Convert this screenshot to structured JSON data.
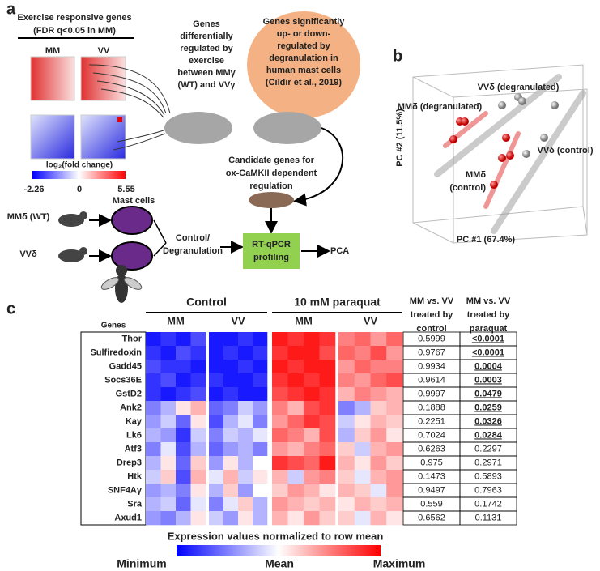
{
  "panel_a": {
    "label": "a",
    "exercise_title": [
      "Exercise responsive genes",
      "(FDR q<0.05 in MM)"
    ],
    "columns": [
      "MM",
      "VV"
    ],
    "colorbar": {
      "label": "log₂(fold change)",
      "min": -2.26,
      "mid": 0,
      "max": 5.55
    },
    "exercise_genes": [
      "Genes",
      "differentially",
      "regulated by",
      "exercise",
      "between MMγ",
      "(WT) and VVγ"
    ],
    "degranulation_genes": [
      "Genes significantly",
      "up- or down-",
      "regulated by",
      "degranulation in",
      "human mast cells",
      "(Cildir et al., 2019)"
    ],
    "candidate_genes": [
      "Candidate genes for",
      "ox-CaMKII dependent",
      "regulation"
    ],
    "mast_cells": "Mast cells",
    "mouse_wt": "MMδ (WT)",
    "mouse_vv": "VVδ",
    "treatment": [
      "Control/",
      "Degranulation"
    ],
    "profiling": [
      "RT-qPCR",
      "profiling"
    ],
    "pca": "PCA"
  },
  "panel_b": {
    "label": "b",
    "labels": [
      "VVδ (degranulated)",
      "MMδ (degranulated)",
      "VVδ (control)",
      "MMδ",
      "(control)"
    ],
    "y_axis": "PC #2 (11.5%)",
    "x_axis": "PC #1 (67.4%)"
  },
  "panel_c": {
    "label": "c",
    "group_headers": [
      "Control",
      "10 mM paraquat"
    ],
    "column_headers": [
      "MM",
      "VV",
      "MM",
      "VV"
    ],
    "genes_header": "Genes",
    "p_headers": [
      [
        "MM vs. VV",
        "treated by",
        "control"
      ],
      [
        "MM vs. VV",
        "treated by",
        "paraquat"
      ]
    ],
    "value_range": [
      -1,
      1
    ],
    "rows": [
      {
        "gene": "Thor",
        "p_control": "0.5999",
        "p_paraquat": "<0.0001",
        "paraquat_significant": true,
        "values": [
          -0.9,
          -0.8,
          -0.9,
          -0.7,
          -0.9,
          -0.9,
          -0.8,
          -0.9,
          0.9,
          0.8,
          0.9,
          0.8,
          0.5,
          0.6,
          0.4,
          0.6
        ]
      },
      {
        "gene": "Sulfiredoxin",
        "p_control": "0.9767",
        "p_paraquat": "<0.0001",
        "paraquat_significant": true,
        "values": [
          -0.8,
          -0.9,
          -0.7,
          -0.8,
          -0.9,
          -0.8,
          -0.9,
          -0.8,
          0.8,
          0.9,
          0.9,
          0.7,
          0.6,
          0.5,
          0.7,
          0.4
        ]
      },
      {
        "gene": "Gadd45",
        "p_control": "0.9934",
        "p_paraquat": "0.0004",
        "paraquat_significant": true,
        "values": [
          -0.7,
          -0.8,
          -0.8,
          -0.9,
          -0.9,
          -0.9,
          -0.8,
          -0.9,
          0.9,
          0.8,
          0.9,
          0.9,
          0.4,
          0.6,
          0.5,
          0.5
        ]
      },
      {
        "gene": "Socs36E",
        "p_control": "0.9614",
        "p_paraquat": "0.0003",
        "paraquat_significant": true,
        "values": [
          -0.8,
          -0.7,
          -0.9,
          -0.8,
          -0.8,
          -0.9,
          -0.9,
          -0.8,
          0.8,
          0.9,
          0.8,
          0.9,
          0.5,
          0.4,
          0.6,
          0.7
        ]
      },
      {
        "gene": "GstD2",
        "p_control": "0.9997",
        "p_paraquat": "0.0479",
        "paraquat_significant": true,
        "values": [
          -0.8,
          -0.9,
          -0.8,
          -0.7,
          -0.9,
          -0.8,
          -0.9,
          -0.9,
          0.7,
          0.8,
          0.9,
          0.8,
          0.3,
          0.5,
          0.4,
          0.3
        ]
      },
      {
        "gene": "Ank2",
        "p_control": "0.1888",
        "p_paraquat": "0.0259",
        "paraquat_significant": true,
        "values": [
          -0.5,
          -0.3,
          0.1,
          0.3,
          -0.6,
          -0.5,
          -0.2,
          -0.4,
          0.5,
          0.3,
          0.7,
          0.8,
          -0.5,
          -0.3,
          0.2,
          0.3
        ]
      },
      {
        "gene": "Kay",
        "p_control": "0.2251",
        "p_paraquat": "0.0326",
        "paraquat_significant": true,
        "values": [
          -0.4,
          -0.2,
          -0.6,
          0.1,
          -0.7,
          -0.3,
          -0.1,
          -0.5,
          0.4,
          0.6,
          0.8,
          0.7,
          -0.2,
          0.1,
          0.3,
          0.2
        ]
      },
      {
        "gene": "Lk6",
        "p_control": "0.7024",
        "p_paraquat": "0.0284",
        "paraquat_significant": true,
        "values": [
          -0.3,
          -0.4,
          -0.8,
          -0.2,
          -0.5,
          -0.2,
          -0.3,
          -0.1,
          0.6,
          0.5,
          0.3,
          0.7,
          -0.3,
          0.2,
          0.4,
          0.1
        ]
      },
      {
        "gene": "Atf3",
        "p_control": "0.6263",
        "p_paraquat": "0.2297",
        "paraquat_significant": false,
        "values": [
          -0.5,
          -0.1,
          -0.7,
          -0.3,
          -0.6,
          -0.4,
          -0.3,
          -0.5,
          0.4,
          0.3,
          0.5,
          0.6,
          0.2,
          -0.2,
          0.3,
          0.4
        ]
      },
      {
        "gene": "Drep3",
        "p_control": "0.975",
        "p_paraquat": "0.2971",
        "paraquat_significant": false,
        "values": [
          -0.3,
          0.1,
          -0.6,
          0.2,
          -0.4,
          0.1,
          -0.3,
          0.0,
          0.8,
          0.7,
          0.6,
          0.9,
          0.3,
          0.1,
          0.4,
          0.2
        ]
      },
      {
        "gene": "Htk",
        "p_control": "0.1473",
        "p_paraquat": "0.5893",
        "paraquat_significant": false,
        "values": [
          -0.2,
          0.2,
          -0.7,
          0.3,
          -0.1,
          0.3,
          -0.2,
          0.1,
          0.3,
          -0.2,
          0.4,
          0.5,
          0.2,
          -0.1,
          0.3,
          0.4
        ]
      },
      {
        "gene": "SNF4Aγ",
        "p_control": "0.9497",
        "p_paraquat": "0.7963",
        "paraquat_significant": false,
        "values": [
          -0.4,
          -0.3,
          -0.5,
          0.1,
          -0.3,
          0.2,
          -0.4,
          0.0,
          0.2,
          0.4,
          0.3,
          0.1,
          0.3,
          0.2,
          -0.1,
          0.4
        ]
      },
      {
        "gene": "Sra",
        "p_control": "0.559",
        "p_paraquat": "0.1742",
        "paraquat_significant": false,
        "values": [
          -0.3,
          -0.2,
          -0.6,
          -0.1,
          -0.5,
          -0.1,
          0.2,
          -0.3,
          0.4,
          0.3,
          0.2,
          0.3,
          0.1,
          0.3,
          0.2,
          0.3
        ]
      },
      {
        "gene": "Axud1",
        "p_control": "0.6562",
        "p_paraquat": "0.1131",
        "paraquat_significant": false,
        "values": [
          -0.4,
          -0.5,
          -0.3,
          0.1,
          -0.2,
          -0.4,
          0.1,
          -0.3,
          0.3,
          0.1,
          0.4,
          0.2,
          0.2,
          -0.1,
          0.3,
          0.1
        ]
      }
    ],
    "legend_title": "Expression values normalized to row mean",
    "legend_labels": [
      "Minimum",
      "Mean",
      "Maximum"
    ]
  }
}
